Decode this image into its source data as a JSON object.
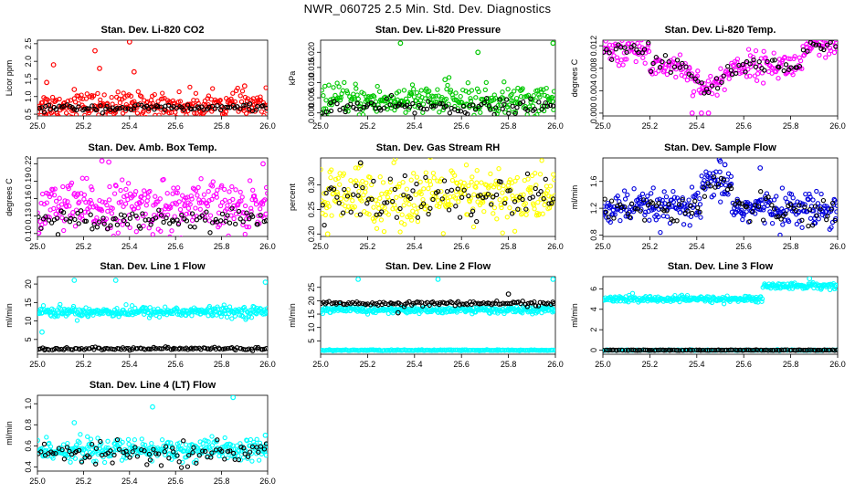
{
  "page_title": "NWR_060725 2.5 Min. Std. Dev. Diagnostics",
  "chart_data": [
    {
      "type": "scatter",
      "title": "Stan. Dev. Li-820 CO2",
      "ylabel": "Licor ppm",
      "xlim": [
        25.0,
        26.0
      ],
      "ylim": [
        0.45,
        2.6
      ],
      "xticks": [
        "25.0",
        "25.2",
        "25.4",
        "25.6",
        "25.8",
        "26.0"
      ],
      "xtick_values": [
        25.0,
        25.2,
        25.4,
        25.6,
        25.8,
        26.0
      ],
      "yticks": [
        "0.5",
        "1.0",
        "1.5",
        "2.0",
        "2.5"
      ],
      "ytick_values": [
        0.5,
        1.0,
        1.5,
        2.0,
        2.5
      ],
      "series": [
        {
          "name": "primary",
          "color": "#ff0000",
          "n": 300,
          "base": 0.75,
          "noise": 0.18,
          "spikes": [
            [
              25.04,
              1.4
            ],
            [
              25.07,
              1.9
            ],
            [
              25.25,
              2.3
            ],
            [
              25.27,
              1.8
            ],
            [
              25.4,
              2.55
            ],
            [
              25.42,
              1.7
            ],
            [
              25.16,
              1.2
            ],
            [
              25.9,
              1.3
            ]
          ]
        },
        {
          "name": "secondary",
          "color": "#000000",
          "n": 90,
          "base": 0.68,
          "noise": 0.05,
          "spikes": []
        }
      ]
    },
    {
      "type": "scatter",
      "title": "Stan. Dev. Li-820 Pressure",
      "ylabel": "kPa",
      "xlim": [
        25.0,
        26.0
      ],
      "ylim": [
        -0.001,
        0.024
      ],
      "xticks": [
        "25.0",
        "25.2",
        "25.4",
        "25.6",
        "25.8",
        "26.0"
      ],
      "xtick_values": [
        25.0,
        25.2,
        25.4,
        25.6,
        25.8,
        26.0
      ],
      "yticks": [
        "0.000",
        "0.005",
        "0.010",
        "0.015",
        "0.020"
      ],
      "ytick_values": [
        0.0,
        0.005,
        0.01,
        0.015,
        0.02
      ],
      "series": [
        {
          "name": "primary",
          "color": "#00c800",
          "n": 300,
          "base": 0.004,
          "noise": 0.0025,
          "spikes": [
            [
              25.34,
              0.023
            ],
            [
              25.67,
              0.02
            ],
            [
              25.99,
              0.023
            ],
            [
              25.53,
              0.011
            ]
          ]
        },
        {
          "name": "secondary",
          "color": "#000000",
          "n": 90,
          "base": 0.002,
          "noise": 0.0012,
          "spikes": []
        }
      ]
    },
    {
      "type": "scatter",
      "title": "Stan. Dev. Li-820 Temp.",
      "ylabel": "degrees C",
      "xlim": [
        25.0,
        26.0
      ],
      "ylim": [
        -0.0005,
        0.013
      ],
      "xticks": [
        "25.0",
        "25.2",
        "25.4",
        "25.6",
        "25.8",
        "26.0"
      ],
      "xtick_values": [
        25.0,
        25.2,
        25.4,
        25.6,
        25.8,
        26.0
      ],
      "yticks": [
        "0.000",
        "0.004",
        "0.008",
        "0.012"
      ],
      "ytick_values": [
        0.0,
        0.004,
        0.008,
        0.012
      ],
      "series": [
        {
          "name": "primary",
          "color": "#ff00ff",
          "n": 260,
          "base": 0.007,
          "noise": 0.0012,
          "spikes": [
            [
              25.38,
              0.0
            ],
            [
              25.42,
              0.0
            ],
            [
              25.45,
              0.0
            ]
          ]
        },
        {
          "name": "secondary",
          "color": "#000000",
          "n": 80,
          "base": 0.007,
          "noise": 0.0008,
          "spikes": []
        }
      ]
    },
    {
      "type": "scatter",
      "title": "Stan. Dev. Amb. Box Temp.",
      "ylabel": "degrees C",
      "xlim": [
        25.0,
        26.0
      ],
      "ylim": [
        0.095,
        0.23
      ],
      "xticks": [
        "25.0",
        "25.2",
        "25.4",
        "25.6",
        "25.8",
        "26.0"
      ],
      "xtick_values": [
        25.0,
        25.2,
        25.4,
        25.6,
        25.8,
        26.0
      ],
      "yticks": [
        "0.10",
        "0.13",
        "0.16",
        "0.19",
        "0.22"
      ],
      "ytick_values": [
        0.1,
        0.13,
        0.16,
        0.19,
        0.22
      ],
      "series": [
        {
          "name": "primary",
          "color": "#ff00ff",
          "n": 320,
          "base": 0.145,
          "noise": 0.022,
          "spikes": [
            [
              25.28,
              0.225
            ],
            [
              25.31,
              0.223
            ],
            [
              25.98,
              0.22
            ]
          ]
        },
        {
          "name": "secondary",
          "color": "#000000",
          "n": 90,
          "base": 0.125,
          "noise": 0.008,
          "spikes": []
        }
      ]
    },
    {
      "type": "scatter",
      "title": "Stan. Dev. Gas Stream RH",
      "ylabel": "percent",
      "xlim": [
        25.0,
        26.0
      ],
      "ylim": [
        0.195,
        0.355
      ],
      "xticks": [
        "25.0",
        "25.2",
        "25.4",
        "25.6",
        "25.8",
        "26.0"
      ],
      "xtick_values": [
        25.0,
        25.2,
        25.4,
        25.6,
        25.8,
        26.0
      ],
      "yticks": [
        "0.20",
        "0.25",
        "0.30"
      ],
      "ytick_values": [
        0.2,
        0.25,
        0.3
      ],
      "series": [
        {
          "name": "primary",
          "color": "#ffff00",
          "n": 320,
          "base": 0.275,
          "noise": 0.03,
          "spikes": [
            [
              25.17,
              0.34
            ],
            [
              25.03,
              0.2
            ]
          ]
        },
        {
          "name": "secondary",
          "color": "#000000",
          "n": 90,
          "base": 0.27,
          "noise": 0.025,
          "spikes": [
            [
              25.17,
              0.345
            ]
          ]
        }
      ]
    },
    {
      "type": "scatter",
      "title": "Stan. Dev. Sample Flow",
      "ylabel": "ml/min",
      "xlim": [
        25.0,
        26.0
      ],
      "ylim": [
        0.78,
        1.95
      ],
      "xticks": [
        "25.0",
        "25.2",
        "25.4",
        "25.6",
        "25.8",
        "26.0"
      ],
      "xtick_values": [
        25.0,
        25.2,
        25.4,
        25.6,
        25.8,
        26.0
      ],
      "yticks": [
        "0.8",
        "1.2",
        "1.6"
      ],
      "ytick_values": [
        0.8,
        1.2,
        1.6
      ],
      "series": [
        {
          "name": "primary",
          "color": "#0000dd",
          "n": 320,
          "base": 1.2,
          "noise": 0.12,
          "spikes": [
            [
              25.5,
              1.9
            ],
            [
              25.52,
              1.85
            ],
            [
              25.67,
              1.8
            ],
            [
              25.9,
              0.98
            ]
          ]
        },
        {
          "name": "secondary",
          "color": "#000000",
          "n": 90,
          "base": 1.2,
          "noise": 0.1,
          "spikes": []
        }
      ]
    },
    {
      "type": "scatter",
      "title": "Stan. Dev. Line 1 Flow",
      "ylabel": "ml/min",
      "xlim": [
        25.0,
        26.0
      ],
      "ylim": [
        1.0,
        22.0
      ],
      "xticks": [
        "25.0",
        "25.2",
        "25.4",
        "25.6",
        "25.8",
        "26.0"
      ],
      "xtick_values": [
        25.0,
        25.2,
        25.4,
        25.6,
        25.8,
        26.0
      ],
      "yticks": [
        "5",
        "10",
        "15",
        "20"
      ],
      "ytick_values": [
        5,
        10,
        15,
        20
      ],
      "series": [
        {
          "name": "primary",
          "color": "#00ffff",
          "n": 320,
          "base": 12.5,
          "noise": 0.7,
          "spikes": [
            [
              25.02,
              7.0
            ],
            [
              25.16,
              21.0
            ],
            [
              25.34,
              21.0
            ],
            [
              25.99,
              20.5
            ]
          ]
        },
        {
          "name": "secondary",
          "color": "#000000",
          "n": 120,
          "base": 2.5,
          "noise": 0.2,
          "spikes": []
        }
      ]
    },
    {
      "type": "scatter",
      "title": "Stan. Dev. Line 2 Flow",
      "ylabel": "ml/min",
      "xlim": [
        25.0,
        26.0
      ],
      "ylim": [
        0.0,
        29.0
      ],
      "xticks": [
        "25.0",
        "25.2",
        "25.4",
        "25.6",
        "25.8",
        "26.0"
      ],
      "xtick_values": [
        25.0,
        25.2,
        25.4,
        25.6,
        25.8,
        26.0
      ],
      "yticks": [
        "5",
        "10",
        "15",
        "20",
        "25"
      ],
      "ytick_values": [
        5,
        10,
        15,
        20,
        25
      ],
      "series": [
        {
          "name": "primary",
          "color": "#00ffff",
          "n": 300,
          "base": 16.5,
          "noise": 0.6,
          "spikes": [
            [
              25.16,
              28.0
            ],
            [
              25.5,
              28.0
            ],
            [
              25.99,
              28.0
            ]
          ]
        },
        {
          "name": "tertiary",
          "color": "#00ffff",
          "n": 200,
          "base": 1.5,
          "noise": 0.1,
          "spikes": []
        },
        {
          "name": "secondary",
          "color": "#000000",
          "n": 120,
          "base": 19.0,
          "noise": 0.4,
          "spikes": [
            [
              25.33,
              15.5
            ],
            [
              25.8,
              22.5
            ]
          ]
        }
      ]
    },
    {
      "type": "scatter",
      "title": "Stan. Dev. Line 3 Flow",
      "ylabel": "ml/min",
      "xlim": [
        25.0,
        26.0
      ],
      "ylim": [
        -0.4,
        7.2
      ],
      "xticks": [
        "25.0",
        "25.2",
        "25.4",
        "25.6",
        "25.8",
        "26.0"
      ],
      "xtick_values": [
        25.0,
        25.2,
        25.4,
        25.6,
        25.8,
        26.0
      ],
      "yticks": [
        "0",
        "2",
        "4",
        "6"
      ],
      "ytick_values": [
        0,
        2,
        4,
        6
      ],
      "series": [
        {
          "name": "primary",
          "color": "#00ffff",
          "n": 320,
          "base": 5.0,
          "noise": 0.15,
          "spikes": [
            [
              25.88,
              7.0
            ]
          ]
        },
        {
          "name": "tertiary",
          "color": "#00ffff",
          "n": 120,
          "base": 0.0,
          "noise": 0.02,
          "spikes": []
        },
        {
          "name": "secondary",
          "color": "#000000",
          "n": 120,
          "base": 0.0,
          "noise": 0.02,
          "spikes": []
        }
      ]
    },
    {
      "type": "scatter",
      "title": "Stan. Dev. Line 4 (LT) Flow",
      "ylabel": "ml/min",
      "xlim": [
        25.0,
        26.0
      ],
      "ylim": [
        0.36,
        1.08
      ],
      "xticks": [
        "25.0",
        "25.2",
        "25.4",
        "25.6",
        "25.8",
        "26.0"
      ],
      "xtick_values": [
        25.0,
        25.2,
        25.4,
        25.6,
        25.8,
        26.0
      ],
      "yticks": [
        "0.4",
        "0.6",
        "0.8",
        "1.0"
      ],
      "ytick_values": [
        0.4,
        0.6,
        0.8,
        1.0
      ],
      "series": [
        {
          "name": "primary",
          "color": "#00ffff",
          "n": 320,
          "base": 0.56,
          "noise": 0.05,
          "spikes": [
            [
              25.16,
              0.82
            ],
            [
              25.5,
              0.97
            ],
            [
              25.85,
              1.06
            ],
            [
              25.99,
              0.7
            ]
          ]
        },
        {
          "name": "secondary",
          "color": "#000000",
          "n": 90,
          "base": 0.53,
          "noise": 0.05,
          "spikes": []
        }
      ]
    }
  ]
}
